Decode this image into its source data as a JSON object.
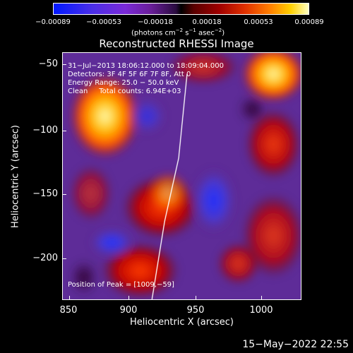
{
  "colorbar": {
    "ticks": [
      "−0.00089",
      "−0.00053",
      "−0.00018",
      "0.00018",
      "0.00053",
      "0.00089"
    ],
    "unit_parts": [
      "(photons cm",
      "−2",
      " s",
      "−1",
      " asec",
      "−2",
      ")"
    ]
  },
  "plot": {
    "title": "Reconstructed RHESSI Image",
    "annotations": [
      "31−Jul−2013 18:06:12.000 to 18:09:04.000",
      "Detectors: 3F 4F 5F 6F 7F 8F, Att 0",
      "Energy Range: 25.0 − 50.0 keV",
      "Clean     Total counts: 6.94E+03"
    ],
    "peak_label": "Position of Peak = [1009,−59]",
    "xlabel": "Heliocentric X (arcsec)",
    "ylabel": "Heliocentric Y (arcsec)",
    "xticks": [
      "850",
      "900",
      "950",
      "1000"
    ],
    "yticks": [
      "−50",
      "−100",
      "−150",
      "−200"
    ]
  },
  "timestamp": "15−May−2022 22:55"
}
